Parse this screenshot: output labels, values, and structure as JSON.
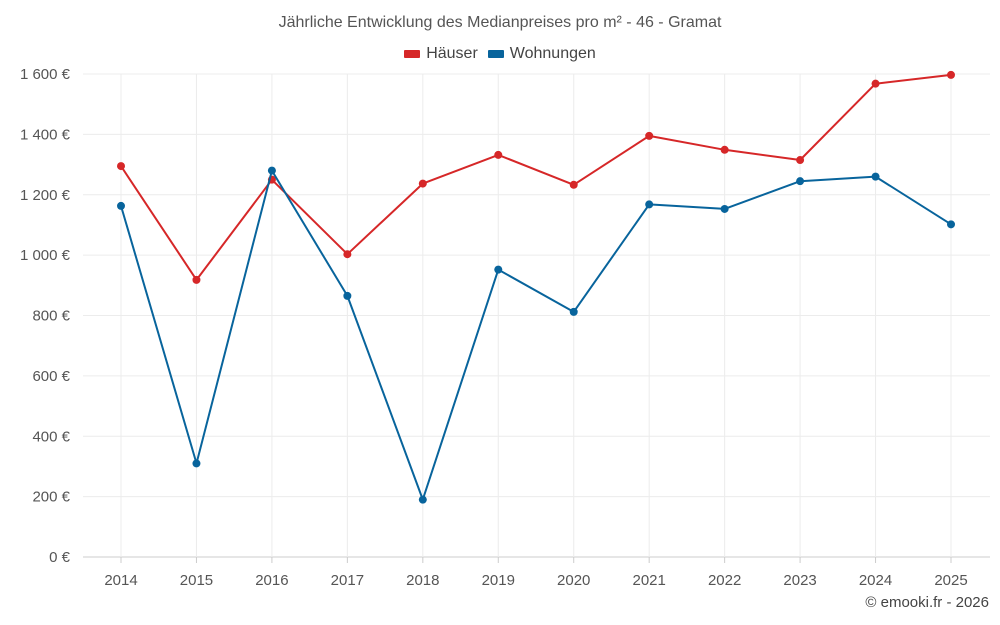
{
  "chart_data": {
    "type": "line",
    "title": "Jährliche Entwicklung des Medianpreises pro m² - 46 - Gramat",
    "xlabel": "",
    "ylabel": "",
    "categories": [
      "2014",
      "2015",
      "2016",
      "2017",
      "2018",
      "2019",
      "2020",
      "2021",
      "2022",
      "2023",
      "2024",
      "2025"
    ],
    "ylim": [
      0,
      1600
    ],
    "yticks": [
      0,
      200,
      400,
      600,
      800,
      1000,
      1200,
      1400,
      1600
    ],
    "ytick_labels": [
      "0 €",
      "200 €",
      "400 €",
      "600 €",
      "800 €",
      "1 000 €",
      "1 200 €",
      "1 400 €",
      "1 600 €"
    ],
    "grid": true,
    "legend_position": "top-center",
    "series": [
      {
        "name": "Häuser",
        "color": "#d62728",
        "values": [
          1295,
          918,
          1250,
          1003,
          1237,
          1332,
          1233,
          1395,
          1349,
          1315,
          1568,
          1597
        ]
      },
      {
        "name": "Wohnungen",
        "color": "#08649c",
        "values": [
          1163,
          310,
          1280,
          865,
          190,
          952,
          812,
          1168,
          1153,
          1245,
          1260,
          1102
        ]
      }
    ]
  },
  "credit": "© emooki.fr - 2026"
}
